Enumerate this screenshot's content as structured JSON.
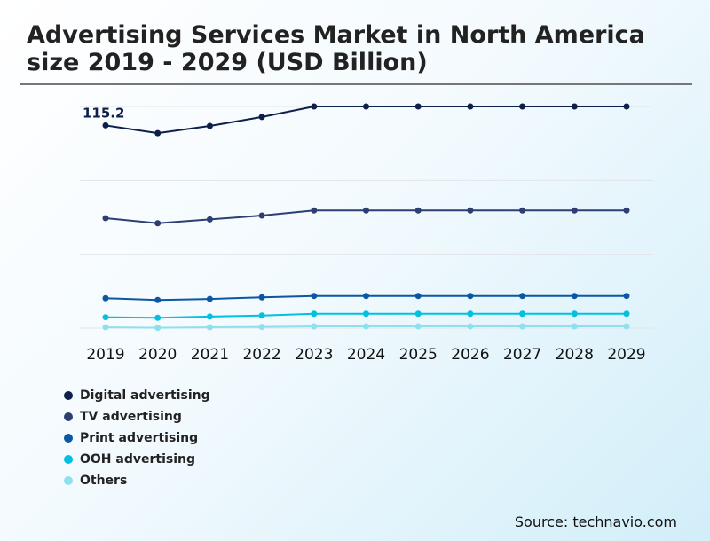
{
  "chart_data": {
    "type": "line",
    "title": "Advertising Services Market in North America size 2019 - 2029 (USD Billion)",
    "xlabel": "",
    "ylabel": "",
    "ylim": [
      0,
      126
    ],
    "grid": true,
    "gridlines": [
      0,
      42,
      84,
      126
    ],
    "categories": [
      "2019",
      "2020",
      "2021",
      "2022",
      "2023",
      "2024",
      "2025",
      "2026",
      "2027",
      "2028",
      "2029"
    ],
    "series": [
      {
        "name": "Digital advertising",
        "color": "#0d1f4a",
        "values": [
          115.2,
          110.8,
          114.9,
          120.0,
          126.0,
          126.0,
          126.0,
          126.0,
          126.0,
          126.0,
          126.0
        ]
      },
      {
        "name": "TV advertising",
        "color": "#2d3e73",
        "values": [
          62.5,
          59.6,
          61.8,
          64.0,
          66.9,
          66.9,
          66.9,
          66.9,
          66.9,
          66.9,
          66.9
        ]
      },
      {
        "name": "Print advertising",
        "color": "#0a57a4",
        "values": [
          17.0,
          16.0,
          16.6,
          17.5,
          18.3,
          18.3,
          18.3,
          18.3,
          18.3,
          18.3,
          18.3
        ]
      },
      {
        "name": "OOH advertising",
        "color": "#00c1e0",
        "values": [
          6.2,
          5.9,
          6.6,
          7.2,
          8.2,
          8.2,
          8.2,
          8.2,
          8.2,
          8.2,
          8.2
        ]
      },
      {
        "name": "Others",
        "color": "#8fe0ef",
        "values": [
          0.5,
          0.2,
          0.5,
          0.7,
          1.0,
          1.0,
          1.0,
          1.0,
          1.0,
          1.0,
          1.0
        ]
      }
    ],
    "annotations": [
      {
        "series": "Digital advertising",
        "category": "2019",
        "text": "115.2"
      }
    ],
    "legend_placement": "bottom-left"
  },
  "source": "Source: technavio.com"
}
